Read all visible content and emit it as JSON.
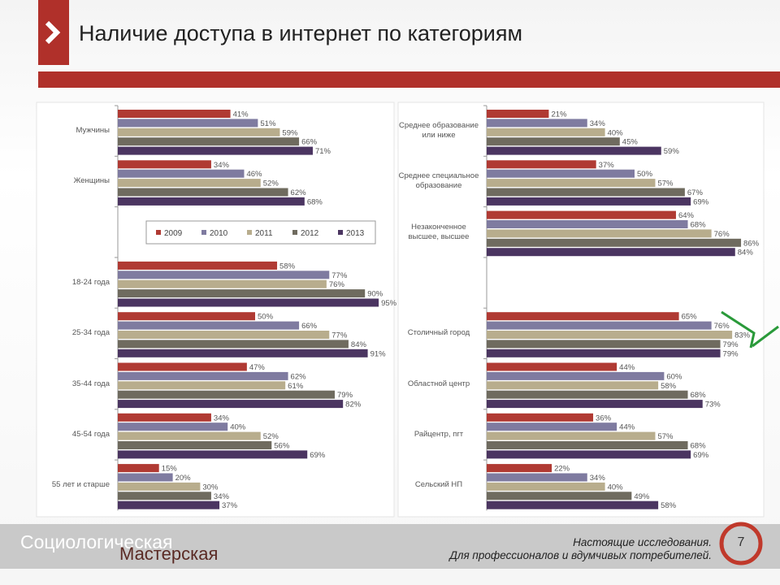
{
  "header": {
    "title": "Наличие доступа в интернет по категориям"
  },
  "chart_data": [
    {
      "type": "bar",
      "orientation": "horizontal",
      "legend": true,
      "categories": [
        "Мужчины",
        "Женщины",
        null,
        "18-24 года",
        "25-34 года",
        "35-44 года",
        "45-54 года",
        "55 лет и старше"
      ],
      "series": [
        {
          "name": "2009",
          "color": "#b03a33",
          "values": [
            41,
            34,
            null,
            58,
            50,
            47,
            34,
            15
          ],
          "value_labels": [
            "41%",
            "34%",
            null,
            "58%",
            "50%",
            "47%",
            "34%",
            "15%"
          ]
        },
        {
          "name": "2010",
          "color": "#7f7ba0",
          "values": [
            51,
            46,
            null,
            77,
            66,
            62,
            40,
            20
          ],
          "value_labels": [
            "51%",
            "46%",
            null,
            "77%",
            "66%",
            "62%",
            "40%",
            "20%"
          ]
        },
        {
          "name": "2011",
          "color": "#b8ad8d",
          "values": [
            59,
            52,
            null,
            76,
            77,
            61,
            52,
            30
          ],
          "value_labels": [
            "59%",
            "52%",
            null,
            "76%",
            "77%",
            "61%",
            "52%",
            "30%"
          ]
        },
        {
          "name": "2012",
          "color": "#6f6b5f",
          "values": [
            66,
            62,
            null,
            90,
            84,
            79,
            56,
            34
          ],
          "value_labels": [
            "66%",
            "62%",
            null,
            "90%",
            "84%",
            "79%",
            "56%",
            "34%"
          ]
        },
        {
          "name": "2013",
          "color": "#4b3561",
          "values": [
            71,
            68,
            null,
            95,
            91,
            82,
            69,
            37
          ],
          "value_labels": [
            "71%",
            "68%",
            null,
            "95%",
            "91%",
            "82%",
            "69%",
            "37%"
          ]
        }
      ]
    },
    {
      "type": "bar",
      "orientation": "horizontal",
      "legend": false,
      "categories": [
        "Среднее образование или ниже",
        "Среднее специальное образование",
        "Незаконченное высшее, высшее",
        null,
        "Столичный город",
        "Областной центр",
        "Райцентр, пгт",
        "Сельский НП"
      ],
      "series": [
        {
          "name": "2009",
          "color": "#b03a33",
          "values": [
            21,
            37,
            64,
            null,
            65,
            44,
            36,
            22
          ],
          "value_labels": [
            "21%",
            "37%",
            "64%",
            null,
            "65%",
            "44%",
            "36%",
            "22%"
          ]
        },
        {
          "name": "2010",
          "color": "#7f7ba0",
          "values": [
            34,
            50,
            68,
            null,
            76,
            60,
            44,
            34
          ],
          "value_labels": [
            "34%",
            "50%",
            "68%",
            null,
            "76%",
            "60%",
            "44%",
            "34%"
          ]
        },
        {
          "name": "2011",
          "color": "#b8ad8d",
          "values": [
            40,
            57,
            76,
            null,
            83,
            58,
            57,
            40
          ],
          "value_labels": [
            "40%",
            "57%",
            "76%",
            null,
            "83%",
            "58%",
            "57%",
            "40%"
          ]
        },
        {
          "name": "2012",
          "color": "#6f6b5f",
          "values": [
            45,
            67,
            86,
            null,
            79,
            68,
            68,
            49
          ],
          "value_labels": [
            "45%",
            "67%",
            "86%",
            null,
            "79%",
            "68%",
            "68%",
            "49%"
          ]
        },
        {
          "name": "2013",
          "color": "#4b3561",
          "values": [
            59,
            69,
            84,
            null,
            79,
            73,
            69,
            58
          ],
          "value_labels": [
            "59%",
            "69%",
            "84%",
            null,
            "79%",
            "73%",
            "69%",
            "58%"
          ]
        }
      ]
    }
  ],
  "footer": {
    "brand_line1": "Социологическая",
    "brand_line2": "Мастерская",
    "tagline_line1": "Настоящие исследования.",
    "tagline_line2": "Для профессионалов и вдумчивых потребителей.",
    "page_number": "7"
  }
}
